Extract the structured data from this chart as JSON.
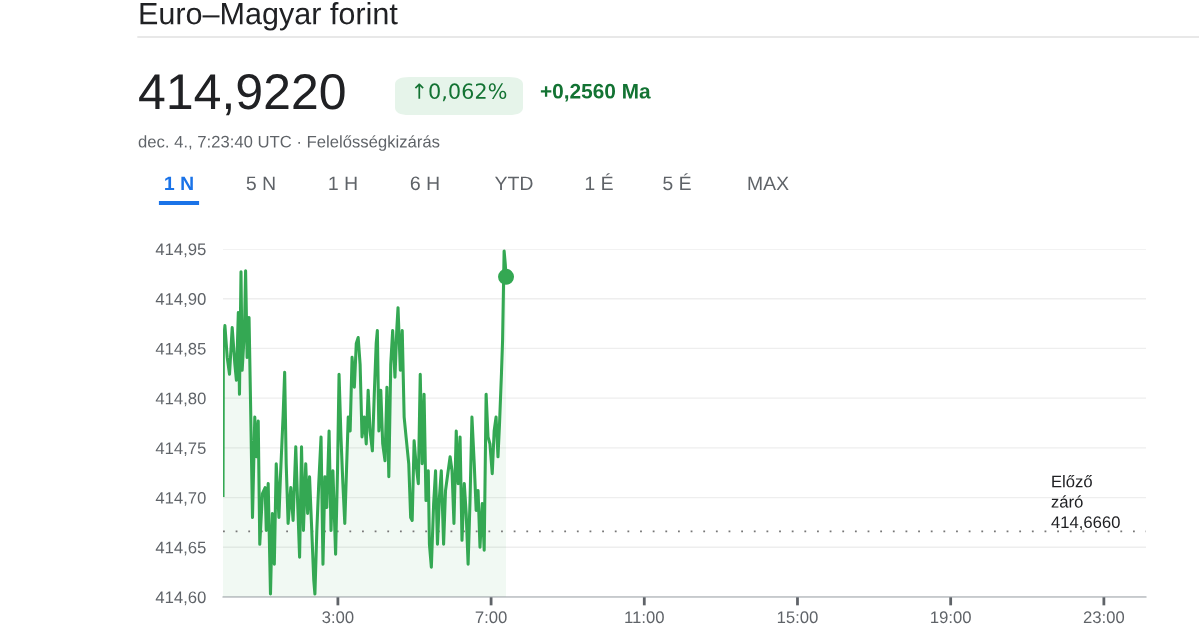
{
  "chart_data": {
    "type": "area",
    "title": "Euro–Magyar forint",
    "annotations": [
      "414,9220",
      "↑0,062%",
      "+0,2560 Ma",
      "dec. 4., 7:23:40 UTC · Felelősségkizárás",
      "1 N",
      "5 N",
      "1 H",
      "6 H",
      "YTD",
      "1 É",
      "5 É",
      "MAX"
    ],
    "series": [
      {
        "color": "#34a853",
        "x": [
          0,
          0.01,
          0.05,
          0.11,
          0.17,
          0.24,
          0.31,
          0.35,
          0.4,
          0.43,
          0.47,
          0.5,
          0.56,
          0.59,
          0.63,
          0.68,
          0.72,
          0.77,
          0.83,
          0.87,
          0.92,
          0.96,
          1.03,
          1.1,
          1.13,
          1.18,
          1.24,
          1.29,
          1.34,
          1.39,
          1.46,
          1.5,
          1.57,
          1.61,
          1.65,
          1.7,
          1.77,
          1.83,
          1.9,
          1.95,
          2.0,
          2.05,
          2.1,
          2.16,
          2.21,
          2.26,
          2.31,
          2.37,
          2.4,
          2.45,
          2.5,
          2.56,
          2.61,
          2.66,
          2.71,
          2.77,
          2.82,
          2.87,
          2.94,
          2.99,
          3.03,
          3.08,
          3.13,
          3.18,
          3.23,
          3.27,
          3.32,
          3.37,
          3.43,
          3.48,
          3.53,
          3.58,
          3.63,
          3.69,
          3.74,
          3.79,
          3.84,
          3.9,
          3.95,
          4.0,
          4.03,
          4.07,
          4.12,
          4.17,
          4.23,
          4.28,
          4.33,
          4.38,
          4.43,
          4.49,
          4.54,
          4.57,
          4.63,
          4.68,
          4.73,
          4.78,
          4.85,
          4.9,
          4.94,
          4.99,
          5.04,
          5.1,
          5.15,
          5.2,
          5.25,
          5.3,
          5.36,
          5.39,
          5.44,
          5.5,
          5.55,
          5.6,
          5.65,
          5.7,
          5.76,
          5.81,
          5.88,
          5.93,
          5.98,
          6.03,
          6.09,
          6.14,
          6.19,
          6.24,
          6.3,
          6.35,
          6.4,
          6.45,
          6.5,
          6.56,
          6.61,
          6.66,
          6.71,
          6.77,
          6.82,
          6.87,
          6.92,
          6.97,
          7.03,
          7.08,
          7.13,
          7.18,
          7.22,
          7.27,
          7.3,
          7.34,
          7.37,
          7.39
        ],
        "values": [
          414.702,
          414.855,
          414.873,
          414.841,
          414.824,
          414.871,
          414.834,
          414.818,
          414.886,
          414.804,
          414.927,
          414.828,
          414.868,
          414.928,
          414.841,
          414.881,
          414.794,
          414.68,
          414.781,
          414.741,
          414.777,
          414.653,
          414.704,
          414.71,
          414.667,
          414.714,
          414.603,
          414.684,
          414.633,
          414.734,
          414.68,
          414.721,
          414.783,
          414.826,
          414.734,
          414.674,
          414.71,
          414.677,
          414.751,
          414.694,
          414.64,
          414.751,
          414.667,
          414.734,
          414.684,
          414.721,
          414.674,
          414.617,
          414.603,
          414.667,
          414.714,
          414.761,
          414.633,
          414.721,
          414.69,
          414.767,
          414.667,
          414.727,
          414.643,
          414.727,
          414.824,
          414.761,
          414.714,
          414.674,
          414.734,
          414.781,
          414.767,
          414.841,
          414.811,
          414.855,
          414.861,
          414.834,
          414.761,
          414.781,
          414.754,
          414.808,
          414.767,
          414.747,
          414.804,
          414.855,
          414.868,
          414.767,
          414.808,
          414.754,
          414.737,
          414.811,
          414.721,
          414.834,
          414.868,
          414.821,
          414.871,
          414.891,
          414.828,
          414.868,
          414.781,
          414.761,
          414.734,
          414.68,
          414.677,
          414.757,
          414.734,
          414.714,
          414.824,
          414.734,
          414.804,
          414.697,
          414.727,
          414.653,
          414.63,
          414.694,
          414.727,
          414.653,
          414.7,
          414.727,
          414.653,
          414.707,
          414.727,
          414.741,
          414.727,
          414.674,
          414.767,
          414.714,
          414.761,
          414.657,
          414.714,
          414.684,
          414.633,
          414.697,
          414.781,
          414.734,
          414.687,
          414.707,
          414.65,
          414.694,
          414.647,
          414.804,
          414.761,
          414.754,
          414.724,
          414.767,
          414.781,
          414.741,
          414.774,
          414.824,
          414.858,
          414.948,
          414.935,
          414.922
        ]
      },
      {
        "type": "scatter",
        "color": "#34a853",
        "x": [
          7.39
        ],
        "values": [
          414.922
        ]
      }
    ],
    "xlim": [
      0,
      24.1
    ],
    "ylim": [
      414.6,
      414.95
    ],
    "xticks": [
      {
        "value": 3,
        "label": "3:00"
      },
      {
        "value": 7,
        "label": "7:00"
      },
      {
        "value": 11,
        "label": "11:00"
      },
      {
        "value": 15,
        "label": "15:00"
      },
      {
        "value": 19,
        "label": "19:00"
      },
      {
        "value": 23,
        "label": "23:00"
      }
    ],
    "yticks": [
      {
        "value": 414.6,
        "label": "414,60"
      },
      {
        "value": 414.65,
        "label": "414,65"
      },
      {
        "value": 414.7,
        "label": "414,70"
      },
      {
        "value": 414.75,
        "label": "414,75"
      },
      {
        "value": 414.8,
        "label": "414,80"
      },
      {
        "value": 414.85,
        "label": "414,85"
      },
      {
        "value": 414.9,
        "label": "414,90"
      },
      {
        "value": 414.95,
        "label": "414,95"
      }
    ],
    "grid": "y",
    "ref_lines": [
      {
        "axis": "y",
        "value": 414.666,
        "label": "Előző\nzáró\n414,6660",
        "color": "#777777",
        "line_style": "dotted"
      }
    ]
  }
}
